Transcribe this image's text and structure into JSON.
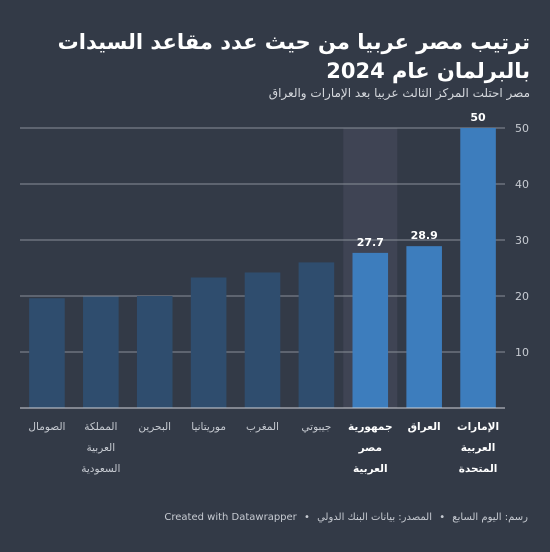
{
  "header": {
    "title": "ترتيب مصر عربيا من حيث عدد مقاعد السيدات بالبرلمان عام 2024",
    "subtitle": "مصر احتلت المركز الثالث عربيا بعد الإمارات والعراق"
  },
  "footer": {
    "credit": "رسم: اليوم السابع",
    "separator": "•",
    "source": "المصدر: بيانات البنك الدولي",
    "separator2": "•",
    "tool": "Created with Datawrapper"
  },
  "colors": {
    "background": "#333a47",
    "bar_default": "#2f4d6e",
    "bar_highlight": "#3d7dbd",
    "highlight_band": "#3f4454",
    "grid": "#8a8f99"
  },
  "chart_data": {
    "type": "bar",
    "categories": [
      [
        "الصومال"
      ],
      [
        "المملكة",
        "العربية",
        "السعودية"
      ],
      [
        "البحرين"
      ],
      [
        "موريتانيا"
      ],
      [
        "المغرب"
      ],
      [
        "جيبوتي"
      ],
      [
        "جمهورية",
        "مصر",
        "العربية"
      ],
      [
        "العراق"
      ],
      [
        "الإمارات",
        "العربية",
        "المتحدة"
      ]
    ],
    "values": [
      19.6,
      19.9,
      20.0,
      23.3,
      24.2,
      26.0,
      27.7,
      28.9,
      50
    ],
    "highlighted": [
      false,
      false,
      false,
      false,
      false,
      false,
      true,
      true,
      true
    ],
    "value_labels": [
      "",
      "",
      "",
      "",
      "",
      "",
      "27.7",
      "28.9",
      "50"
    ],
    "band_category_index": 6,
    "ylim": [
      0,
      50
    ],
    "yticks": [
      "10",
      "20",
      "30",
      "40",
      "50"
    ],
    "grid": true,
    "y_axis_side": "right"
  }
}
